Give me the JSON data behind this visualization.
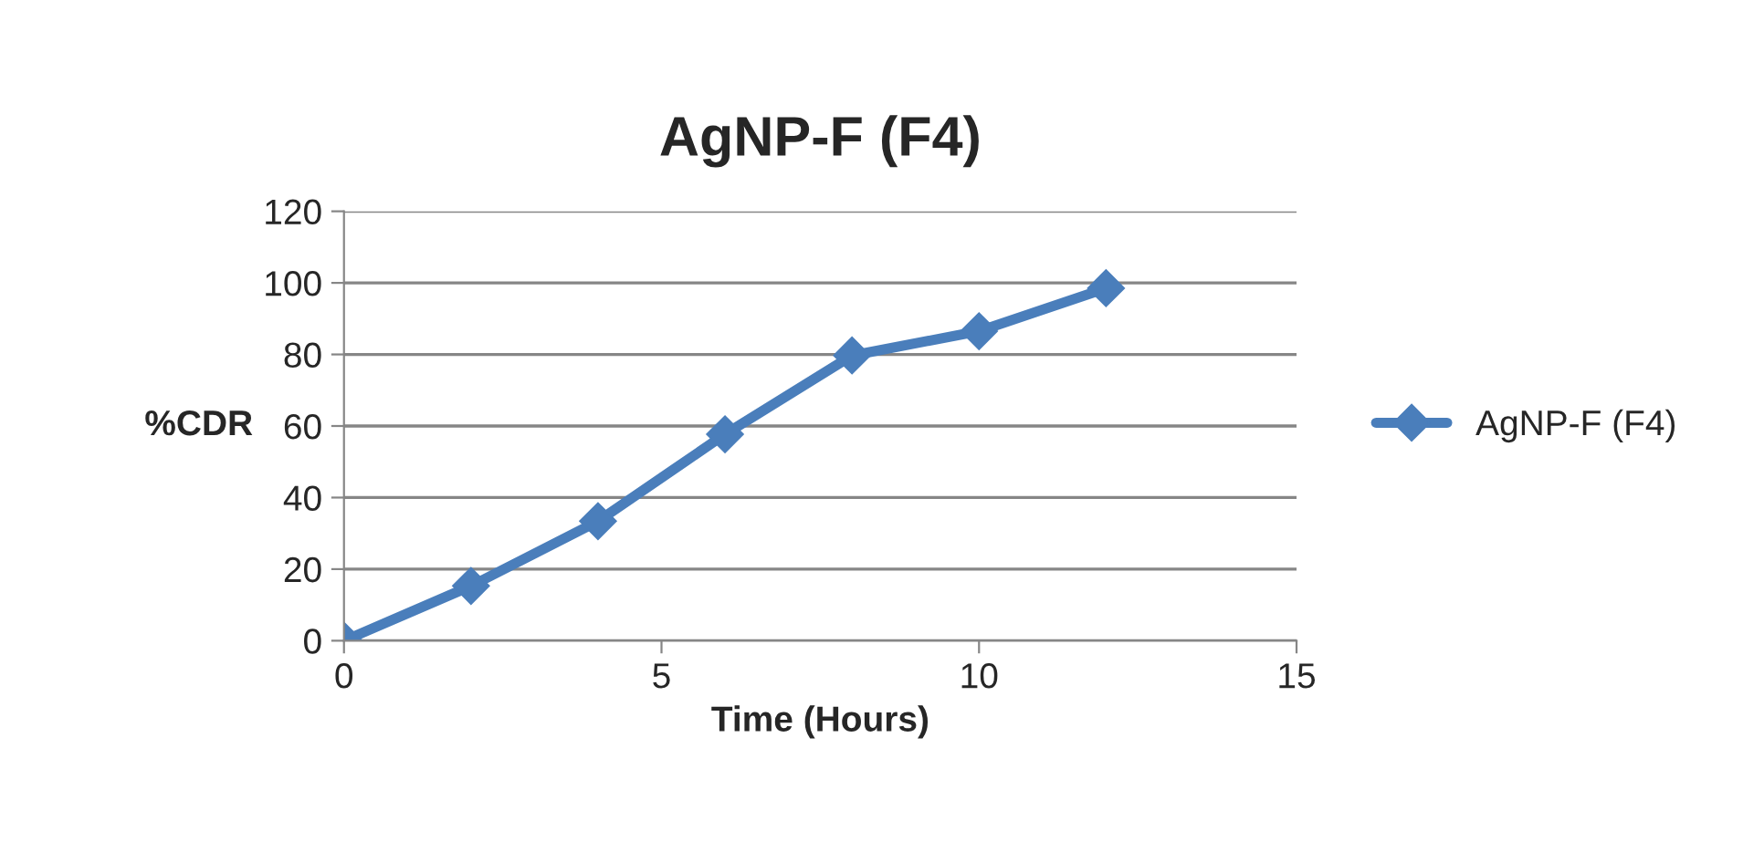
{
  "chart_data": {
    "type": "line",
    "title": "AgNP-F (F4)",
    "xlabel": "Time (Hours)",
    "ylabel": "%CDR",
    "x": [
      0,
      2,
      4,
      6,
      8,
      10,
      12
    ],
    "series": [
      {
        "name": "AgNP-F (F4)",
        "color": "#4a7ebb",
        "values": [
          0,
          15.3,
          33.4,
          57.7,
          79.7,
          86.5,
          98.5
        ]
      }
    ],
    "xlim": [
      0,
      15
    ],
    "xticks": [
      0,
      5,
      10,
      15
    ],
    "ylim": [
      0,
      120
    ],
    "yticks": [
      0,
      20,
      40,
      60,
      80,
      100,
      120
    ],
    "grid": "y",
    "legend": "right",
    "marker": "diamond",
    "line_style": "solid"
  }
}
